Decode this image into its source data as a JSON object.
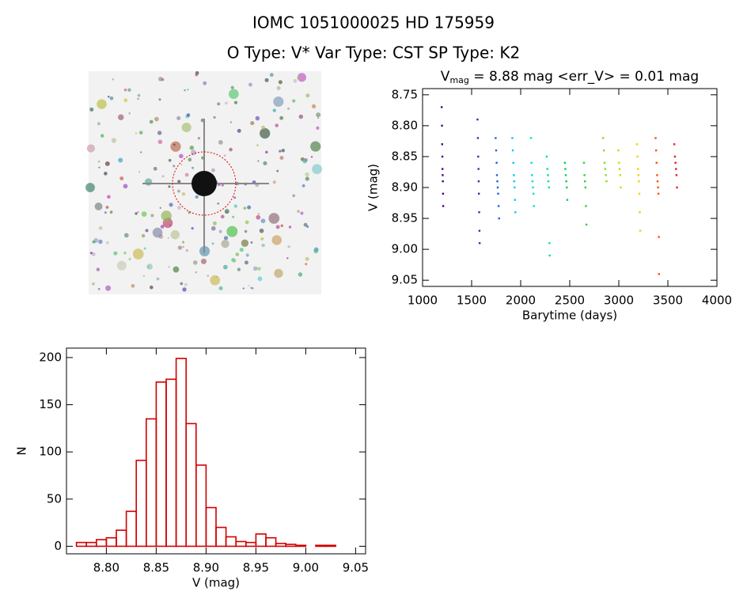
{
  "title": "IOMC 1051000025   HD 175959",
  "subtitle": "O Type: V*  Var Type: CST  SP Type: K2",
  "chart_data": [
    {
      "type": "scatter",
      "title": {
        "main": "V",
        "sub": "mag",
        "rest": " = 8.88 mag <err_V> = 0.01 mag"
      },
      "x_label": "Barytime (days)",
      "y_label": "V (mag)",
      "xlim": [
        1000,
        4000
      ],
      "xticks": [
        1000,
        1500,
        2000,
        2500,
        3000,
        3500,
        4000
      ],
      "ylim": [
        8.74,
        9.06
      ],
      "y_inverted": true,
      "yticks": [
        8.75,
        {
          "value": 8.8,
          "label": "8.80"
        },
        8.85,
        {
          "value": 8.9,
          "label": "8.90"
        },
        8.95,
        {
          "value": 9.0,
          "label": "9.00"
        },
        9.05
      ],
      "series": [
        {
          "color": "#4b0082",
          "x": [
            1195,
            1198,
            1200,
            1202,
            1203,
            1205,
            1207,
            1209,
            1210
          ],
          "y": [
            8.77,
            8.8,
            8.83,
            8.85,
            8.87,
            8.88,
            8.89,
            8.91,
            8.93
          ]
        },
        {
          "color": "#5a1ea8",
          "x": [
            1560,
            1564,
            1567,
            1570,
            1572,
            1574,
            1577,
            1580,
            1582
          ],
          "y": [
            8.79,
            8.82,
            8.85,
            8.87,
            8.89,
            8.91,
            8.94,
            8.97,
            8.99
          ]
        },
        {
          "color": "#1464e6",
          "x": [
            1745,
            1750,
            1755,
            1758,
            1762,
            1766,
            1770,
            1775,
            1780
          ],
          "y": [
            8.82,
            8.84,
            8.86,
            8.88,
            8.89,
            8.9,
            8.91,
            8.93,
            8.95
          ]
        },
        {
          "color": "#00c8ff",
          "x": [
            1915,
            1920,
            1925,
            1930,
            1934,
            1938,
            1942,
            1946
          ],
          "y": [
            8.82,
            8.84,
            8.86,
            8.88,
            8.89,
            8.9,
            8.92,
            8.94
          ]
        },
        {
          "color": "#00e0c8",
          "x": [
            2105,
            2110,
            2115,
            2120,
            2125,
            2130,
            2135
          ],
          "y": [
            8.82,
            8.86,
            8.88,
            8.89,
            8.9,
            8.91,
            8.93
          ]
        },
        {
          "color": "#00e0a0",
          "x": [
            2265,
            2272,
            2278,
            2282,
            2288,
            2293,
            2296
          ],
          "y": [
            8.85,
            8.87,
            8.88,
            8.89,
            8.9,
            8.99,
            9.01
          ]
        },
        {
          "color": "#00d060",
          "x": [
            2450,
            2455,
            2460,
            2465,
            2470,
            2475
          ],
          "y": [
            8.86,
            8.87,
            8.88,
            8.89,
            8.9,
            8.92
          ]
        },
        {
          "color": "#30d030",
          "x": [
            2645,
            2650,
            2655,
            2660,
            2665,
            2670
          ],
          "y": [
            8.86,
            8.88,
            8.89,
            8.9,
            8.93,
            8.96
          ]
        },
        {
          "color": "#80e020",
          "x": [
            2840,
            2848,
            2855,
            2862,
            2868,
            2875
          ],
          "y": [
            8.82,
            8.84,
            8.86,
            8.87,
            8.88,
            8.89
          ]
        },
        {
          "color": "#c0e000",
          "x": [
            2995,
            3002,
            3008,
            3014,
            3020
          ],
          "y": [
            8.84,
            8.86,
            8.87,
            8.88,
            8.9
          ]
        },
        {
          "color": "#f0d000",
          "x": [
            3185,
            3190,
            3195,
            3200,
            3205,
            3210,
            3214,
            3218
          ],
          "y": [
            8.83,
            8.85,
            8.87,
            8.88,
            8.89,
            8.91,
            8.94,
            8.97
          ]
        },
        {
          "color": "#ff5000",
          "x": [
            3375,
            3380,
            3385,
            3390,
            3395,
            3400,
            3404,
            3408,
            3410
          ],
          "y": [
            8.82,
            8.84,
            8.86,
            8.88,
            8.89,
            8.9,
            8.91,
            8.98,
            9.04
          ]
        },
        {
          "color": "#e02020",
          "x": [
            3565,
            3572,
            3578,
            3583,
            3588,
            3593
          ],
          "y": [
            8.83,
            8.85,
            8.86,
            8.87,
            8.88,
            8.9
          ]
        }
      ]
    },
    {
      "type": "histogram",
      "x_label": "V (mag)",
      "y_label": "N",
      "color": "#d00000",
      "xlim": [
        8.76,
        9.06
      ],
      "xticks": [
        {
          "value": 8.8,
          "label": "8.80"
        },
        8.85,
        {
          "value": 8.9,
          "label": "8.90"
        },
        8.95,
        {
          "value": 9.0,
          "label": "9.00"
        },
        9.05
      ],
      "ylim": [
        -8,
        210
      ],
      "yticks": [
        0,
        50,
        100,
        150,
        200
      ],
      "bins": [
        8.77,
        8.78,
        8.79,
        8.8,
        8.81,
        8.82,
        8.83,
        8.84,
        8.85,
        8.86,
        8.87,
        8.88,
        8.89,
        8.9,
        8.91,
        8.92,
        8.93,
        8.94,
        8.95,
        8.96,
        8.97,
        8.98,
        8.99,
        9.0,
        9.01,
        9.02,
        9.03
      ],
      "values": [
        4,
        4,
        7,
        9,
        17,
        37,
        91,
        135,
        174,
        177,
        199,
        130,
        86,
        41,
        20,
        10,
        5,
        4,
        13,
        9,
        3,
        2,
        1,
        0,
        1,
        1
      ]
    }
  ]
}
